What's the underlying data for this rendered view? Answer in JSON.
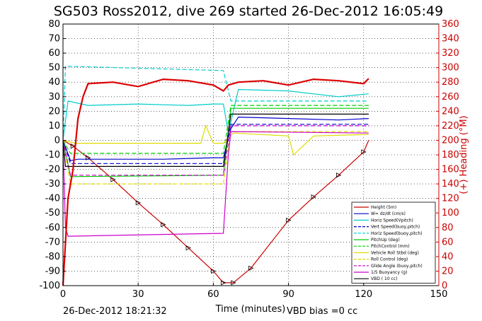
{
  "chart_data": {
    "type": "line",
    "title": "SG503 Ross2012, dive 269 started 26-Dec-2012 16:05:49",
    "xlabel": "Time (minutes)",
    "ylabel_right": "(+) Heading (°M)",
    "xlim": [
      0,
      150
    ],
    "ylim": [
      -100,
      80
    ],
    "ylim_right": [
      0,
      360
    ],
    "xticks": [
      "0",
      "30",
      "60",
      "90",
      "120",
      "150"
    ],
    "yticks": [
      "80",
      "70",
      "60",
      "50",
      "40",
      "30",
      "20",
      "10",
      "0",
      "-10",
      "-20",
      "-30",
      "-40",
      "-50",
      "-60",
      "-70",
      "-80",
      "-90",
      "-100"
    ],
    "yticks_right": [
      "360",
      "340",
      "320",
      "300",
      "280",
      "260",
      "240",
      "220",
      "200",
      "180",
      "160",
      "140",
      "120",
      "100",
      "80",
      "60",
      "40",
      "20",
      "0"
    ],
    "grid": true,
    "footer_left": "26-Dec-2012 18:21:32",
    "footer_right": "VBD bias =0 cc",
    "legend_position": "bottom-right",
    "series": [
      {
        "name": "Height (5m)",
        "color": "#cc0000",
        "x": [
          0,
          4,
          10,
          20,
          30,
          40,
          50,
          60,
          64,
          68,
          75,
          90,
          100,
          110,
          120,
          122
        ],
        "y": [
          0,
          -4,
          -12,
          -27,
          -43,
          -58,
          -74,
          -90,
          -98,
          -98,
          -88,
          -55,
          -39,
          -24,
          -8,
          0
        ]
      },
      {
        "name": "W= dz/dt (cm/s)",
        "color": "#0000cc",
        "x": [
          0,
          3,
          6,
          20,
          40,
          60,
          64,
          67,
          70,
          90,
          110,
          122
        ],
        "y": [
          0,
          -14,
          -13,
          -13,
          -13,
          -12,
          -12,
          8,
          16,
          15,
          14,
          15
        ]
      },
      {
        "name": "Horiz Speed(Vpitch)",
        "color": "#00cccc",
        "x": [
          0,
          2,
          10,
          30,
          50,
          60,
          64,
          66,
          70,
          90,
          110,
          122
        ],
        "y": [
          0,
          27,
          24,
          25,
          24,
          25,
          25,
          5,
          35,
          34,
          30,
          32
        ]
      },
      {
        "name": "Vert Speed(buoy,pitch)",
        "color": "#0000cc",
        "x": [
          0,
          3,
          64,
          67,
          122
        ],
        "y": [
          0,
          -16,
          -16,
          11,
          11
        ]
      },
      {
        "name": "Horiz Speed(buoy,pitch)",
        "color": "#00cccc",
        "x": [
          0,
          1,
          64,
          67,
          122
        ],
        "y": [
          0,
          51,
          48,
          27,
          27
        ]
      },
      {
        "name": "PitchUp (deg)",
        "color": "#00cc00",
        "x": [
          0,
          3,
          64,
          67,
          122
        ],
        "y": [
          0,
          -25,
          -24,
          22,
          22
        ]
      },
      {
        "name": "PitchControl (mm)",
        "color": "#00cc00",
        "x": [
          0,
          3,
          64,
          67,
          122
        ],
        "y": [
          0,
          -9,
          -9,
          24,
          24
        ]
      },
      {
        "name": "Vehicle Roll Stbd (deg)",
        "color": "#dddd00",
        "x": [
          0,
          5,
          30,
          55,
          57,
          60,
          64,
          68,
          90,
          92,
          100,
          122
        ],
        "y": [
          0,
          -2,
          -2,
          -2,
          10,
          -2,
          -2,
          5,
          3,
          -10,
          3,
          4
        ]
      },
      {
        "name": "Roll Control (deg)",
        "color": "#dddd00",
        "x": [
          0,
          3,
          64,
          67,
          122
        ],
        "y": [
          0,
          -30,
          -30,
          6,
          6
        ]
      },
      {
        "name": "Glide Angle (buoy,pitch)",
        "color": "#cc00cc",
        "x": [
          0,
          3,
          64,
          67,
          122
        ],
        "y": [
          0,
          -24,
          -24,
          10,
          10
        ]
      },
      {
        "name": "1/5 Buoyancy (g)",
        "color": "#cc00cc",
        "x": [
          0,
          1,
          2,
          64,
          66,
          67,
          122
        ],
        "y": [
          0,
          -60,
          -66,
          -64,
          -10,
          6,
          5
        ]
      },
      {
        "name": "VBD ( 10 cc)",
        "color": "#000000",
        "x": [
          0,
          1,
          64,
          67,
          122
        ],
        "y": [
          0,
          -18,
          -18,
          18,
          18
        ]
      }
    ],
    "heading": {
      "name": "Heading",
      "color": "#dd0000",
      "x": [
        0,
        2,
        4,
        6,
        8,
        10,
        20,
        30,
        40,
        50,
        60,
        64,
        66,
        70,
        80,
        90,
        100,
        110,
        120,
        122
      ],
      "y": [
        0,
        120,
        160,
        230,
        260,
        278,
        280,
        274,
        284,
        282,
        276,
        268,
        276,
        280,
        282,
        276,
        284,
        282,
        278,
        285
      ]
    }
  }
}
